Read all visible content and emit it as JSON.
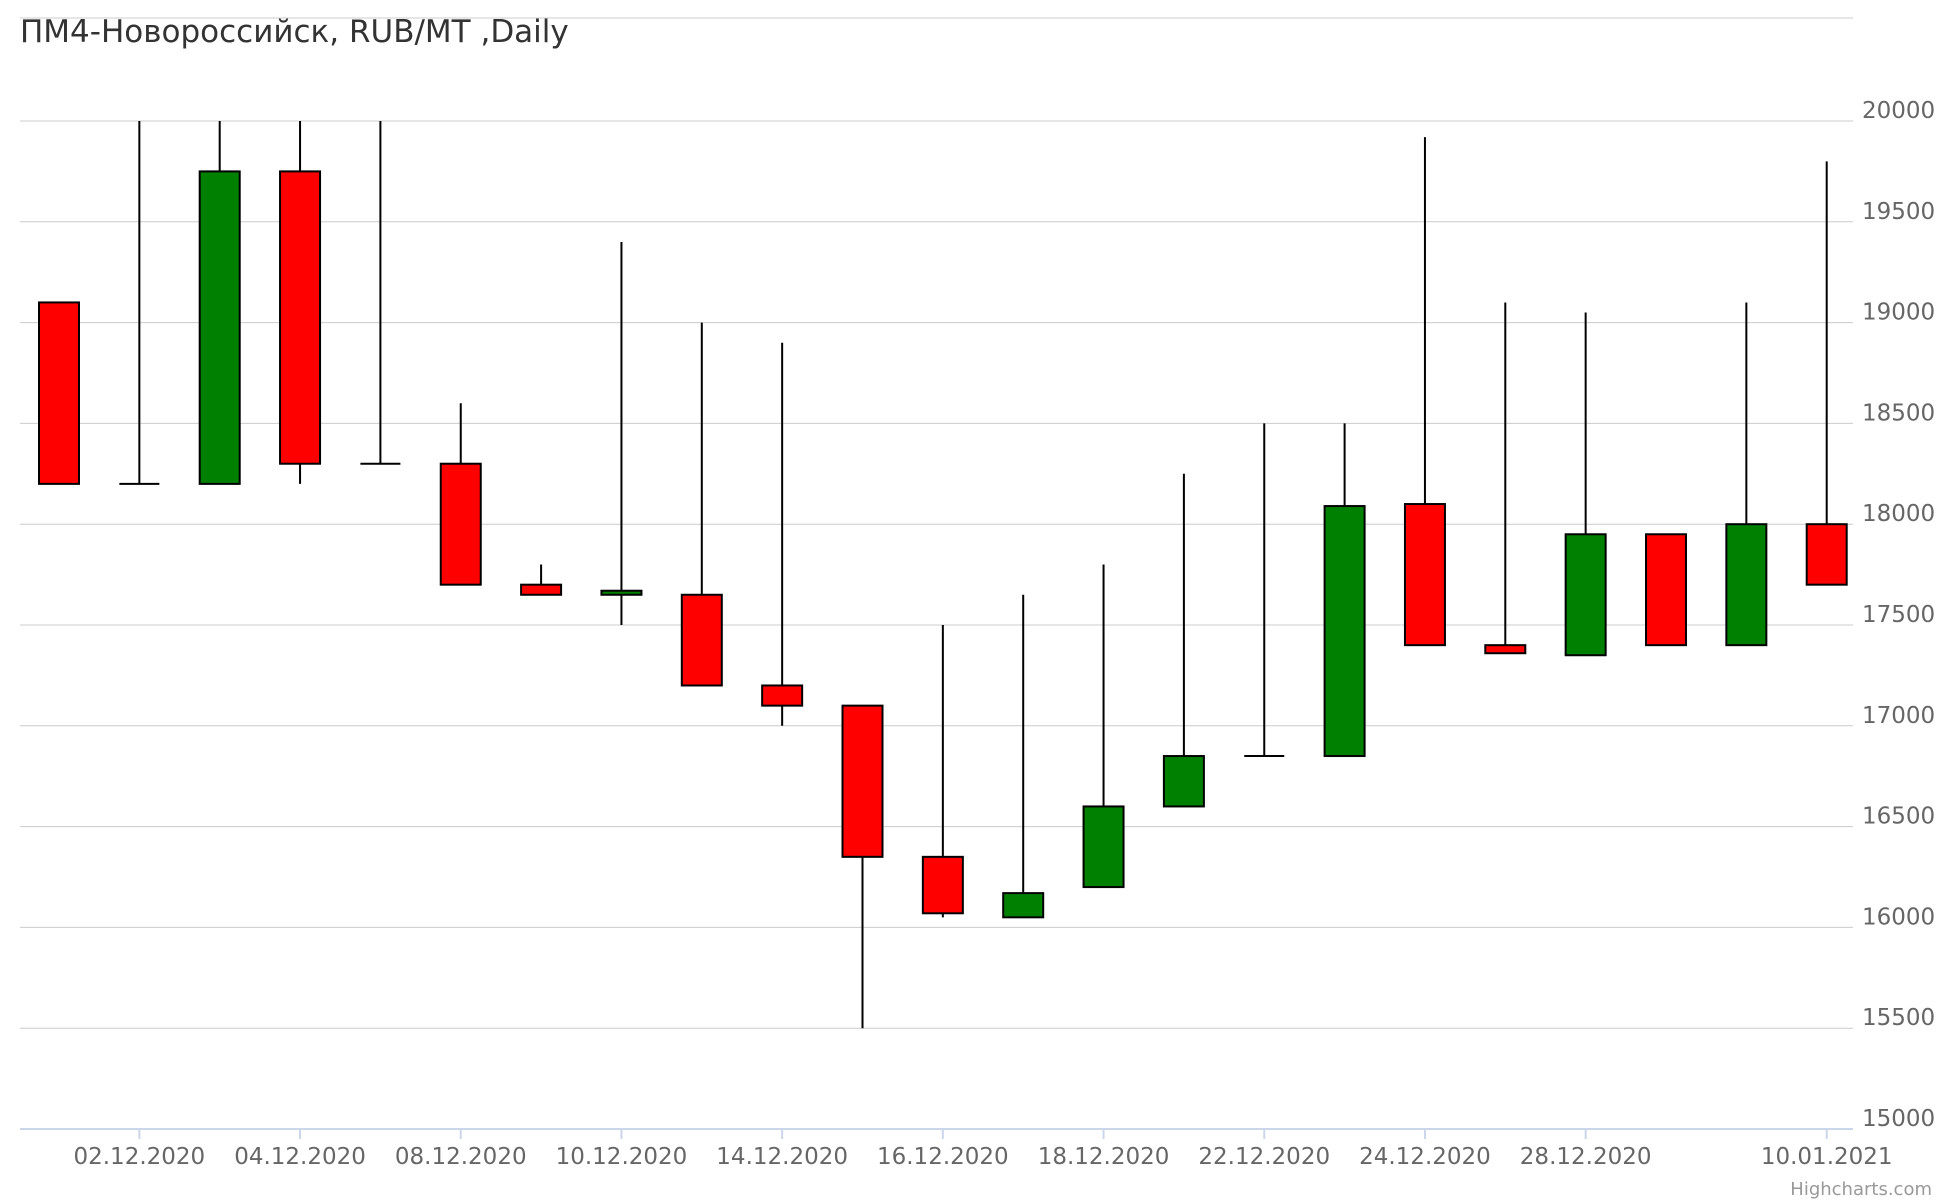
{
  "title": "ПМ4-Новороссийск, RUB/MT ,Daily",
  "credits": "Highcharts.com",
  "colors": {
    "up": "#008000",
    "down": "#ff0000",
    "outline": "#000000",
    "grid": "#cccccc",
    "axis": "#ccd6eb"
  },
  "chart_data": {
    "type": "candlestick",
    "title": "ПМ4-Новороссийск, RUB/MT ,Daily",
    "ylim": [
      15000,
      20000
    ],
    "yticks": [
      20000,
      19500,
      19000,
      18500,
      18000,
      17500,
      17000,
      16500,
      16000,
      15500,
      15000
    ],
    "xticks": [
      {
        "i": 1,
        "label": "02.12.2020"
      },
      {
        "i": 3,
        "label": "04.12.2020"
      },
      {
        "i": 5,
        "label": "08.12.2020"
      },
      {
        "i": 7,
        "label": "10.12.2020"
      },
      {
        "i": 9,
        "label": "14.12.2020"
      },
      {
        "i": 11,
        "label": "16.12.2020"
      },
      {
        "i": 13,
        "label": "18.12.2020"
      },
      {
        "i": 15,
        "label": "22.12.2020"
      },
      {
        "i": 17,
        "label": "24.12.2020"
      },
      {
        "i": 19,
        "label": "28.12.2020"
      },
      {
        "i": 22,
        "label": "10.01.2021"
      }
    ],
    "grid": true,
    "candles": [
      {
        "open": 19100,
        "high": 19100,
        "low": 18200,
        "close": 18200
      },
      {
        "open": 18200,
        "high": 20000,
        "low": 18200,
        "close": 18200
      },
      {
        "open": 18200,
        "high": 20000,
        "low": 18200,
        "close": 19750
      },
      {
        "open": 19750,
        "high": 20000,
        "low": 18200,
        "close": 18300
      },
      {
        "open": 18300,
        "high": 20000,
        "low": 18300,
        "close": 18300
      },
      {
        "open": 18300,
        "high": 18600,
        "low": 17700,
        "close": 17700
      },
      {
        "open": 17700,
        "high": 17800,
        "low": 17650,
        "close": 17650
      },
      {
        "open": 17650,
        "high": 19400,
        "low": 17500,
        "close": 17670
      },
      {
        "open": 17650,
        "high": 19000,
        "low": 17200,
        "close": 17200
      },
      {
        "open": 17200,
        "high": 18900,
        "low": 17000,
        "close": 17100
      },
      {
        "open": 17100,
        "high": 17100,
        "low": 15500,
        "close": 16350
      },
      {
        "open": 16350,
        "high": 17500,
        "low": 16050,
        "close": 16070
      },
      {
        "open": 16050,
        "high": 17650,
        "low": 16050,
        "close": 16170
      },
      {
        "open": 16200,
        "high": 17800,
        "low": 16200,
        "close": 16600
      },
      {
        "open": 16600,
        "high": 18250,
        "low": 16600,
        "close": 16850
      },
      {
        "open": 16850,
        "high": 18500,
        "low": 16850,
        "close": 16850
      },
      {
        "open": 16850,
        "high": 18500,
        "low": 16850,
        "close": 18090
      },
      {
        "open": 18100,
        "high": 19920,
        "low": 17400,
        "close": 17400
      },
      {
        "open": 17400,
        "high": 19100,
        "low": 17360,
        "close": 17360
      },
      {
        "open": 17350,
        "high": 19050,
        "low": 17350,
        "close": 17950
      },
      {
        "open": 17950,
        "high": 17950,
        "low": 17400,
        "close": 17400
      },
      {
        "open": 17400,
        "high": 19100,
        "low": 17400,
        "close": 18000
      },
      {
        "open": 18000,
        "high": 19800,
        "low": 17700,
        "close": 17700
      }
    ]
  }
}
